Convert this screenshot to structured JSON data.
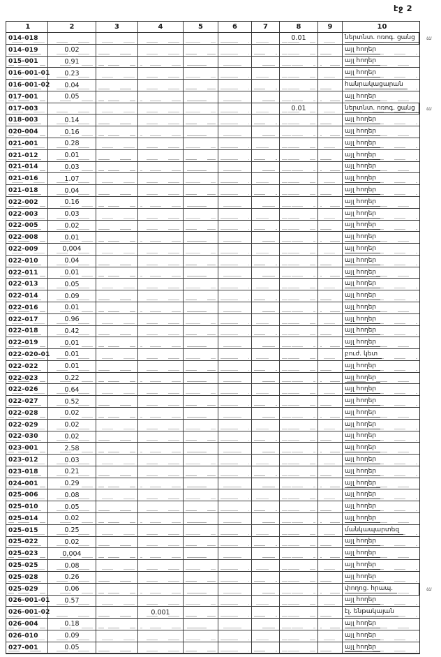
{
  "page": {
    "label": "էջ 2"
  },
  "table": {
    "headers": [
      "1",
      "2",
      "3",
      "4",
      "5",
      "6",
      "7",
      "8",
      "9",
      "10"
    ],
    "rows": [
      {
        "code": "014-018",
        "col2": "",
        "col4": "",
        "col8": "0.01",
        "col10": "ներտնտ. ոռոգ. ցանց",
        "note": "ա"
      },
      {
        "code": "014-019",
        "col2": "0.02",
        "col4": "",
        "col8": "",
        "col10": "այլ հողեր",
        "note": ""
      },
      {
        "code": "015-001",
        "col2": "0.91",
        "col4": "",
        "col8": "",
        "col10": "այլ հողեր",
        "note": ""
      },
      {
        "code": "016-001-01",
        "col2": "0.23",
        "col4": "",
        "col8": "",
        "col10": "այլ հողեր",
        "note": ""
      },
      {
        "code": "016-001-02",
        "col2": "0.04",
        "col4": "",
        "col8": "",
        "col10": "հանրակացարան",
        "note": ""
      },
      {
        "code": "017-001",
        "col2": "0.05",
        "col4": "",
        "col8": "",
        "col10": "այլ հողեր",
        "note": ""
      },
      {
        "code": "017-003",
        "col2": "",
        "col4": "",
        "col8": "0.01",
        "col10": "ներտնտ. ոռոգ. ցանց",
        "note": "ա"
      },
      {
        "code": "018-003",
        "col2": "0.14",
        "col4": "",
        "col8": "",
        "col10": "այլ հողեր",
        "note": ""
      },
      {
        "code": "020-004",
        "col2": "0.16",
        "col4": "",
        "col8": "",
        "col10": "այլ հողեր",
        "note": ""
      },
      {
        "code": "021-001",
        "col2": "0.28",
        "col4": "",
        "col8": "",
        "col10": "այլ հողեր",
        "note": ""
      },
      {
        "code": "021-012",
        "col2": "0.01",
        "col4": "",
        "col8": "",
        "col10": "այլ հողեր",
        "note": ""
      },
      {
        "code": "021-014",
        "col2": "0.03",
        "col4": "",
        "col8": "",
        "col10": "այլ հողեր",
        "note": ""
      },
      {
        "code": "021-016",
        "col2": "1.07",
        "col4": "",
        "col8": "",
        "col10": "այլ հողեր",
        "note": ""
      },
      {
        "code": "021-018",
        "col2": "0.04",
        "col4": "",
        "col8": "",
        "col10": "այլ հողեր",
        "note": ""
      },
      {
        "code": "022-002",
        "col2": "0.16",
        "col4": "",
        "col8": "",
        "col10": "այլ հողեր",
        "note": ""
      },
      {
        "code": "022-003",
        "col2": "0.03",
        "col4": "",
        "col8": "",
        "col10": "այլ հողեր",
        "note": ""
      },
      {
        "code": "022-005",
        "col2": "0.02",
        "col4": "",
        "col8": "",
        "col10": "այլ հողեր",
        "note": ""
      },
      {
        "code": "022-008",
        "col2": "0.01",
        "col4": "",
        "col8": "",
        "col10": "այլ հողեր",
        "note": ""
      },
      {
        "code": "022-009",
        "col2": "0,004",
        "col4": "",
        "col8": "",
        "col10": "այլ հողեր",
        "note": ""
      },
      {
        "code": "022-010",
        "col2": "0.04",
        "col4": "",
        "col8": "",
        "col10": "այլ հողեր",
        "note": ""
      },
      {
        "code": "022-011",
        "col2": "0.01",
        "col4": "",
        "col8": "",
        "col10": "այլ հողեր",
        "note": ""
      },
      {
        "code": "022-013",
        "col2": "0.05",
        "col4": "",
        "col8": "",
        "col10": "այլ հողեր",
        "note": ""
      },
      {
        "code": "022-014",
        "col2": "0.09",
        "col4": "",
        "col8": "",
        "col10": "այլ հողեր",
        "note": ""
      },
      {
        "code": "022-016",
        "col2": "0.01",
        "col4": "",
        "col8": "",
        "col10": "այլ հողեր",
        "note": ""
      },
      {
        "code": "022-017",
        "col2": "0.96",
        "col4": "",
        "col8": "",
        "col10": "այլ հողեր",
        "note": ""
      },
      {
        "code": "022-018",
        "col2": "0.42",
        "col4": "",
        "col8": "",
        "col10": "այլ հողեր",
        "note": ""
      },
      {
        "code": "022-019",
        "col2": "0.01",
        "col4": "",
        "col8": "",
        "col10": "այլ հողեր",
        "note": ""
      },
      {
        "code": "022-020-01",
        "col2": "0.01",
        "col4": "",
        "col8": "",
        "col10": "բուժ. կետ",
        "note": ""
      },
      {
        "code": "022-022",
        "col2": "0.01",
        "col4": "",
        "col8": "",
        "col10": "այլ հողեր",
        "note": ""
      },
      {
        "code": "022-023",
        "col2": "0.22",
        "col4": "",
        "col8": "",
        "col10": "այլ հողեր",
        "note": ""
      },
      {
        "code": "022-026",
        "col2": "0.64",
        "col4": "",
        "col8": "",
        "col10": "այլ հողեր",
        "note": ""
      },
      {
        "code": "022-027",
        "col2": "0.52",
        "col4": "",
        "col8": "",
        "col10": "այլ հողեր",
        "note": ""
      },
      {
        "code": "022-028",
        "col2": "0.02",
        "col4": "",
        "col8": "",
        "col10": "այլ հողեր",
        "note": ""
      },
      {
        "code": "022-029",
        "col2": "0.02",
        "col4": "",
        "col8": "",
        "col10": "այլ հողեր",
        "note": ""
      },
      {
        "code": "022-030",
        "col2": "0.02",
        "col4": "",
        "col8": "",
        "col10": "այլ հողեր",
        "note": ""
      },
      {
        "code": "023-001",
        "col2": "2.58",
        "col4": "",
        "col8": "",
        "col10": "այլ հողեր",
        "note": ""
      },
      {
        "code": "023-012",
        "col2": "0.03",
        "col4": "",
        "col8": "",
        "col10": "այլ հողեր",
        "note": ""
      },
      {
        "code": "023-018",
        "col2": "0.21",
        "col4": "",
        "col8": "",
        "col10": "այլ հողեր",
        "note": ""
      },
      {
        "code": "024-001",
        "col2": "0.29",
        "col4": "",
        "col8": "",
        "col10": "այլ հողեր",
        "note": ""
      },
      {
        "code": "025-006",
        "col2": "0.08",
        "col4": "",
        "col8": "",
        "col10": "այլ հողեր",
        "note": ""
      },
      {
        "code": "025-010",
        "col2": "0.05",
        "col4": "",
        "col8": "",
        "col10": "այլ հողեր",
        "note": ""
      },
      {
        "code": "025-014",
        "col2": "0.02",
        "col4": "",
        "col8": "",
        "col10": "այլ հողեր",
        "note": ""
      },
      {
        "code": "025-015",
        "col2": "0.25",
        "col4": "",
        "col8": "",
        "col10": "մանկապարտեզ",
        "note": ""
      },
      {
        "code": "025-022",
        "col2": "0.02",
        "col4": "",
        "col8": "",
        "col10": "այլ հողեր",
        "note": ""
      },
      {
        "code": "025-023",
        "col2": "0,004",
        "col4": "",
        "col8": "",
        "col10": "այլ հողեր",
        "note": ""
      },
      {
        "code": "025-025",
        "col2": "0.08",
        "col4": "",
        "col8": "",
        "col10": "այլ հողեր",
        "note": ""
      },
      {
        "code": "025-028",
        "col2": "0.26",
        "col4": "",
        "col8": "",
        "col10": "այլ հողեր",
        "note": ""
      },
      {
        "code": "025-029",
        "col2": "0.06",
        "col4": "",
        "col8": "",
        "col10": "փողոց. հրապ.",
        "note": "ա"
      },
      {
        "code": "026-001-01",
        "col2": "0.57",
        "col4": "",
        "col8": "",
        "col10": "այլ հողեր",
        "note": ""
      },
      {
        "code": "026-001-02",
        "col2": "",
        "col4": "0.001",
        "col8": "",
        "col10": "էլ. ենթակայան",
        "note": ""
      },
      {
        "code": "026-004",
        "col2": "0.18",
        "col4": "",
        "col8": "",
        "col10": "այլ հողեր",
        "note": ""
      },
      {
        "code": "026-010",
        "col2": "0.09",
        "col4": "",
        "col8": "",
        "col10": "այլ հողեր",
        "note": ""
      },
      {
        "code": "027-001",
        "col2": "0.05",
        "col4": "",
        "col8": "",
        "col10": "այլ հողեր",
        "note": ""
      }
    ]
  }
}
